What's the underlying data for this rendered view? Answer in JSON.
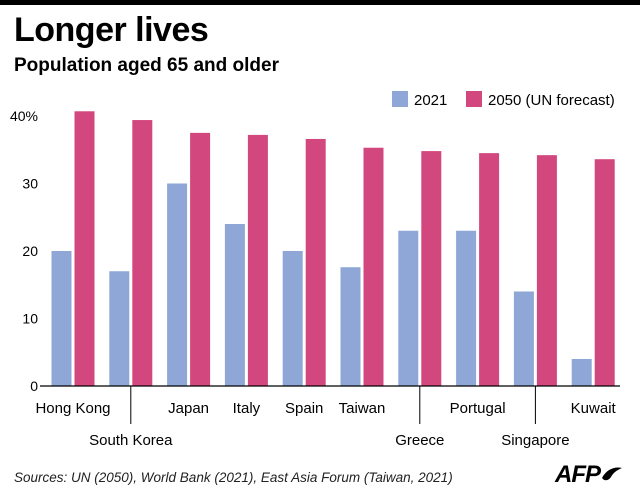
{
  "header": {
    "title": "Longer lives",
    "subtitle": "Population aged 65 and older"
  },
  "footer": {
    "source": "Sources: UN (2050), World Bank (2021), East Asia Forum (Taiwan, 2021)",
    "logo": "AFP"
  },
  "colors": {
    "s2021": "#8fa7d7",
    "s2050": "#d3477f",
    "axis": "#000000"
  },
  "chart_data": {
    "type": "bar",
    "categories": [
      "Hong Kong",
      "South Korea",
      "Japan",
      "Italy",
      "Spain",
      "Taiwan",
      "Greece",
      "Portugal",
      "Singapore",
      "Kuwait"
    ],
    "label_row": [
      "top",
      "bottom",
      "top",
      "top",
      "top",
      "top",
      "bottom",
      "top",
      "bottom",
      "top"
    ],
    "series": [
      {
        "name": "2021",
        "values": [
          20,
          17,
          30,
          24,
          20,
          17.6,
          23,
          23,
          14,
          4
        ]
      },
      {
        "name": "2050 (UN forecast)",
        "values": [
          40.7,
          39.4,
          37.5,
          37.2,
          36.6,
          35.3,
          34.8,
          34.5,
          34.2,
          33.6
        ]
      }
    ],
    "yticks": [
      "0",
      "10",
      "20",
      "30",
      "40%"
    ],
    "ytick_values": [
      0,
      10,
      20,
      30,
      40
    ],
    "ylim": [
      0,
      42
    ],
    "title": "Longer lives",
    "xlabel": "",
    "ylabel": "",
    "legend": "top-right",
    "grid": false
  }
}
